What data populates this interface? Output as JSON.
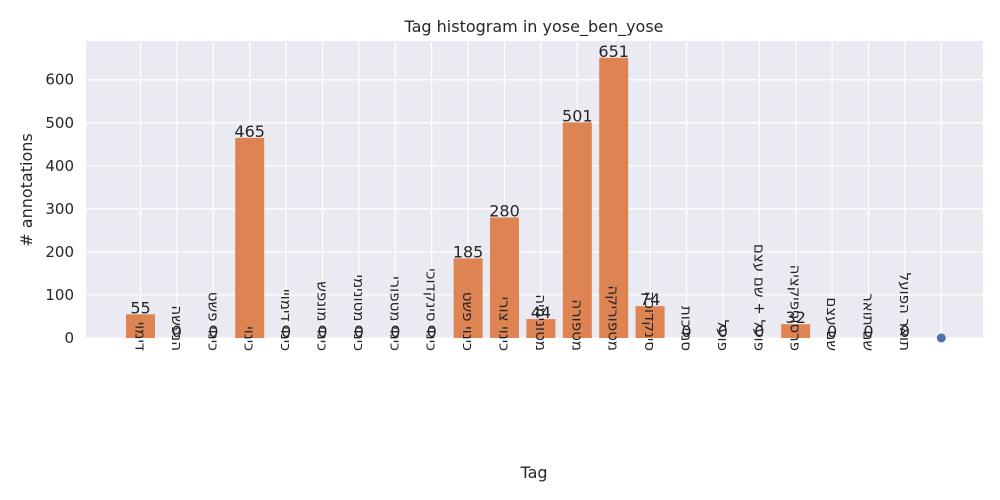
{
  "chart_data": {
    "type": "bar",
    "title": "Tag histogram in yose_ben_yose",
    "xlabel": "Tag",
    "ylabel": "# annotations",
    "ylim": [
      0,
      690
    ],
    "yticks": [
      0,
      100,
      200,
      300,
      400,
      500,
      600
    ],
    "grid": true,
    "legend": "none",
    "categories": [
      "דימוי",
      "הנפשה",
      "כינוי פשט",
      "כינוי",
      "כינוי דימויי",
      "כינוי מונפש",
      "כינוי מטונימי",
      "כינוי מטפורי",
      "כינוי סינקדוכי",
      "כינוי פשט",
      "כינוי צורי",
      "מטונימיה",
      "מטפורה",
      "מטפוריקה",
      "סינקדוכה",
      "סמיכות",
      "פועל",
      "פועל + שם עצם",
      "פרסוניפיקציה",
      "שם עצם",
      "שם תואר",
      "תואר הפועל"
    ],
    "values": [
      55,
      0,
      0,
      465,
      0,
      0,
      0,
      0,
      0,
      185,
      280,
      44,
      501,
      651,
      74,
      0,
      0,
      0,
      32,
      0,
      0,
      0
    ],
    "value_labels": [
      "55",
      "0",
      "0",
      "465",
      "0",
      "0",
      "0",
      "0",
      "0",
      "185",
      "280",
      "44",
      "501",
      "651",
      "74",
      "0",
      "0",
      "0",
      "32",
      "0",
      "0",
      "0"
    ],
    "extra_point": {
      "value": 0
    },
    "colors": {
      "bar": "#dd8452",
      "point": "#4c72b0",
      "plot_background": "#eaeaf2",
      "grid": "#ffffff",
      "text": "#262626"
    }
  }
}
